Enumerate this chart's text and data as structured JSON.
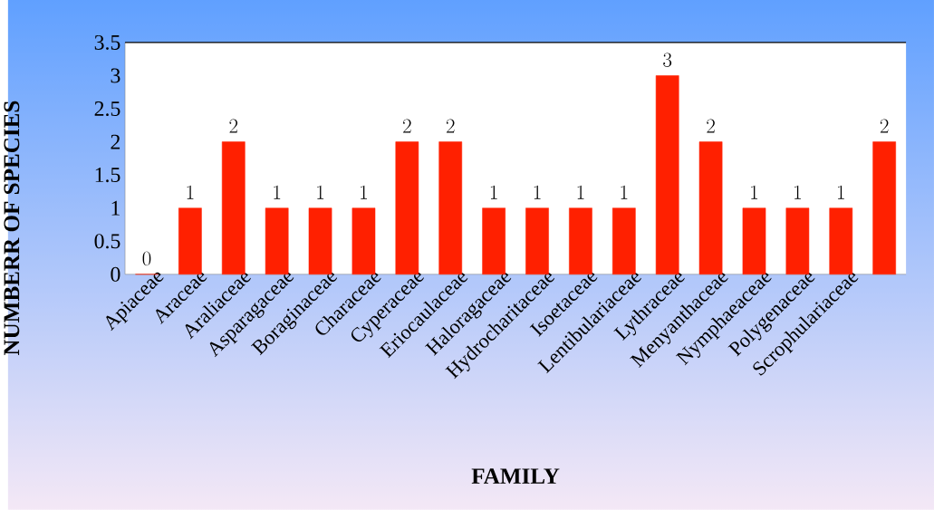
{
  "chart_data": {
    "type": "bar",
    "xlabel": "FAMILY",
    "ylabel": "NUMBERR OF SPECIES",
    "categories": [
      "Apiaceae",
      "Araceae",
      "Araliaceae",
      "Asparagaceae",
      "Boraginaceae",
      "Characeae",
      "Cyperaceae",
      "Eriocaulaceae",
      "Haloragaceae",
      "Hydrocharitaceae",
      "Isoetaceae",
      "Lentibulariaceae",
      "Lythraceae",
      "Menyanthaceae",
      "Nymphaeaceae",
      "Polygenaceae",
      "Scrophulariaceae",
      null
    ],
    "values": [
      0,
      1,
      2,
      1,
      1,
      1,
      2,
      2,
      1,
      1,
      1,
      1,
      3,
      2,
      1,
      1,
      1,
      2
    ],
    "color": "#ff2000",
    "ylim": [
      0,
      3.5
    ],
    "yticks": [
      0,
      0.5,
      1,
      1.5,
      2,
      2.5,
      3,
      3.5
    ],
    "data_labels": true
  }
}
